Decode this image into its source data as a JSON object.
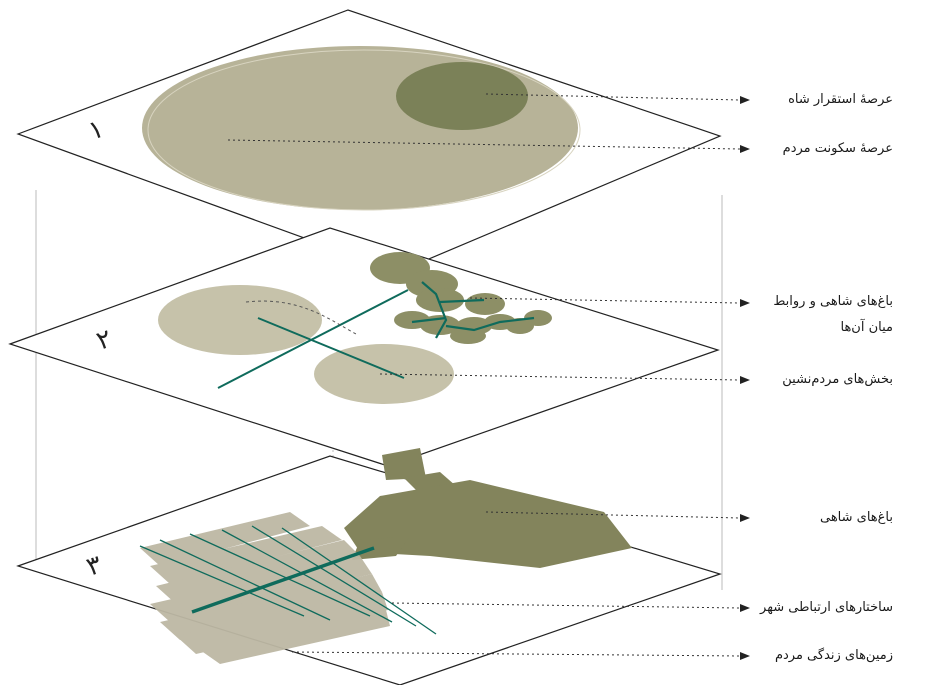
{
  "layers": [
    {
      "numeral": "۱",
      "name": "layer-1-governance"
    },
    {
      "numeral": "۲",
      "name": "layer-2-gardens-settlement"
    },
    {
      "numeral": "۳",
      "name": "layer-3-city-fabric"
    }
  ],
  "labels": {
    "king_zone": "عرصهٔ استقرار شاه",
    "people_zone": "عرصهٔ سکونت مردم",
    "royal_gardens_links_1": "باغ‌های شاهی و روابط",
    "royal_gardens_links_2": "میان آن‌ها",
    "residential_parts": "بخش‌های مردم‌نشین",
    "royal_gardens": "باغ‌های شاهی",
    "city_connections": "ساختارهای ارتباطی شهر",
    "people_land": "زمین‌های زندگی مردم"
  },
  "colors": {
    "people_zone_fill": "#b7b398",
    "king_zone_fill": "#7b8158",
    "garden_fill": "#8d8f66",
    "residential_fill": "#c6c2aa",
    "road": "#0f6b5c",
    "royal_gardens_fill": "#83845c",
    "people_land_fill": "#bdb8a4"
  }
}
